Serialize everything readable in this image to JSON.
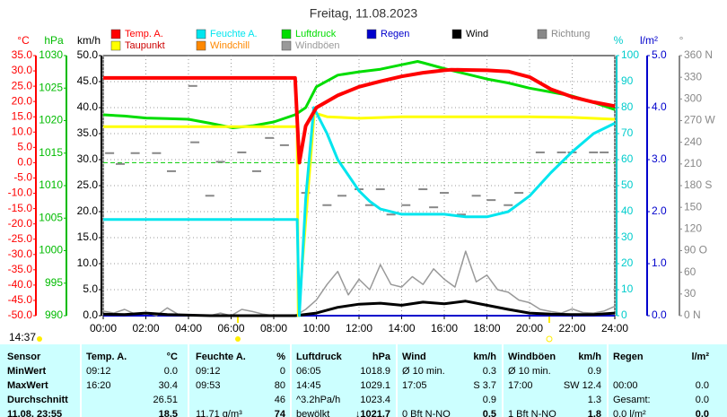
{
  "status_time": "14:37",
  "chart_data": {
    "type": "line",
    "title": "Freitag, 11.08.2023",
    "grid": true,
    "zero_line_color": "#00cc00",
    "xlim": [
      0,
      24
    ],
    "xticks": [
      {
        "value": 0,
        "label": "00:00"
      },
      {
        "value": 2,
        "label": "02:00"
      },
      {
        "value": 4,
        "label": "04:00"
      },
      {
        "value": 6,
        "label": "06:00"
      },
      {
        "value": 8,
        "label": "08:00"
      },
      {
        "value": 10,
        "label": "10:00"
      },
      {
        "value": 12,
        "label": "12:00"
      },
      {
        "value": 14,
        "label": "14:00"
      },
      {
        "value": 16,
        "label": "16:00"
      },
      {
        "value": 18,
        "label": "18:00"
      },
      {
        "value": 20,
        "label": "20:00"
      },
      {
        "value": 22,
        "label": "22:00"
      },
      {
        "value": 24,
        "label": "24:00"
      }
    ],
    "axes": [
      {
        "unit": "°C",
        "side": "left",
        "color": "#ff0000",
        "lim": [
          -50,
          35
        ],
        "ticks": [
          {
            "value": 35,
            "label": "35.0"
          },
          {
            "value": 30,
            "label": "30.0"
          },
          {
            "value": 25,
            "label": "25.0"
          },
          {
            "value": 20,
            "label": "20.0"
          },
          {
            "value": 15,
            "label": "15.0"
          },
          {
            "value": 10,
            "label": "10.0"
          },
          {
            "value": 5,
            "label": "5.0"
          },
          {
            "value": 0,
            "label": "0.0"
          },
          {
            "value": -5,
            "label": "-5.0"
          },
          {
            "value": -10,
            "label": "-10.0"
          },
          {
            "value": -15,
            "label": "-15.0"
          },
          {
            "value": -20,
            "label": "-20.0"
          },
          {
            "value": -25,
            "label": "-25.0"
          },
          {
            "value": -30,
            "label": "-30.0"
          },
          {
            "value": -35,
            "label": "-35.0"
          },
          {
            "value": -40,
            "label": "-40.0"
          },
          {
            "value": -45,
            "label": "-45.0"
          },
          {
            "value": -50,
            "label": "-50.0"
          }
        ]
      },
      {
        "unit": "hPa",
        "side": "left",
        "color": "#00bb00",
        "lim": [
          990,
          1030
        ],
        "ticks": [
          1030,
          1025,
          1020,
          1015,
          1010,
          1005,
          1000,
          995,
          990
        ]
      },
      {
        "unit": "km/h",
        "side": "left",
        "color": "#000000",
        "lim": [
          0,
          50
        ],
        "ticks": [
          {
            "value": 50,
            "label": "50.0"
          },
          {
            "value": 45,
            "label": "45.0"
          },
          {
            "value": 40,
            "label": "40.0"
          },
          {
            "value": 35,
            "label": "35.0"
          },
          {
            "value": 30,
            "label": "30.0"
          },
          {
            "value": 25,
            "label": "25.0"
          },
          {
            "value": 20,
            "label": "20.0"
          },
          {
            "value": 15,
            "label": "15.0"
          },
          {
            "value": 10,
            "label": "10.0"
          },
          {
            "value": 5,
            "label": "5.0"
          },
          {
            "value": 0,
            "label": "0.0"
          }
        ]
      },
      {
        "unit": "%",
        "side": "right",
        "color": "#00cccc",
        "lim": [
          0,
          100
        ],
        "ticks": [
          100,
          90,
          80,
          70,
          60,
          50,
          40,
          30,
          20,
          10,
          0
        ]
      },
      {
        "unit": "l/m²",
        "side": "right",
        "color": "#0000cc",
        "lim": [
          0,
          5
        ],
        "ticks": [
          {
            "value": 5,
            "label": "5.0"
          },
          {
            "value": 4,
            "label": "4.0"
          },
          {
            "value": 3,
            "label": "3.0"
          },
          {
            "value": 2,
            "label": "2.0"
          },
          {
            "value": 1,
            "label": "1.0"
          },
          {
            "value": 0,
            "label": "0.0"
          }
        ]
      },
      {
        "unit": "°",
        "side": "right",
        "color": "#888888",
        "lim": [
          0,
          360
        ],
        "ticks": [
          {
            "value": 360,
            "label": "360 N"
          },
          330,
          300,
          {
            "value": 270,
            "label": "270 W"
          },
          240,
          210,
          {
            "value": 180,
            "label": "180 S"
          },
          150,
          120,
          {
            "value": 90,
            "label": "90 O"
          },
          60,
          30,
          {
            "value": 0,
            "label": "0 N"
          }
        ]
      }
    ],
    "series": [
      {
        "name": "Temp. A.",
        "color": "#ff0000",
        "axis": 0,
        "width": 4,
        "x": [
          0,
          9.0,
          9.2,
          9.5,
          10,
          11,
          12,
          13,
          14,
          15,
          16,
          16.33,
          17,
          18,
          19,
          20,
          21,
          22,
          23,
          24
        ],
        "values": [
          27.7,
          27.7,
          0,
          12,
          18,
          22,
          24.8,
          26.6,
          28.2,
          29.4,
          30.2,
          30.4,
          30.3,
          30.2,
          29.8,
          28,
          24,
          21.5,
          19.8,
          18.5
        ]
      },
      {
        "name": "Feuchte A.",
        "color": "#00e5ee",
        "axis": 3,
        "width": 3,
        "x": [
          0,
          9.1,
          9.2,
          9.5,
          9.88,
          10.5,
          11,
          11.5,
          12,
          12.5,
          13,
          14,
          15,
          16,
          17,
          18,
          19,
          20,
          21,
          22,
          23,
          24
        ],
        "values": [
          37,
          37,
          0,
          45,
          80,
          70,
          60,
          54,
          48,
          44,
          41,
          39,
          39,
          39,
          38,
          38,
          40,
          46,
          55,
          63,
          70,
          74
        ]
      },
      {
        "name": "Luftdruck",
        "color": "#00dd00",
        "axis": 1,
        "width": 3,
        "x": [
          0,
          1,
          2,
          3,
          4,
          5,
          6.08,
          7,
          8,
          9,
          9.5,
          10,
          11,
          12,
          13,
          14,
          14.75,
          15,
          16,
          17,
          18,
          19,
          20,
          21,
          22,
          23,
          24
        ],
        "values": [
          1020.9,
          1020.7,
          1020.4,
          1020.3,
          1020.2,
          1019.6,
          1018.9,
          1019.2,
          1019.8,
          1020.9,
          1022,
          1025.2,
          1027,
          1027.5,
          1027.9,
          1028.6,
          1029.1,
          1028.9,
          1028,
          1027.2,
          1026.4,
          1025.8,
          1025,
          1024.4,
          1023.8,
          1022.8,
          1021.7
        ]
      },
      {
        "name": "Regen",
        "color": "#0000cc",
        "axis": 4,
        "width": 2,
        "x": [
          0,
          24
        ],
        "values": [
          0,
          0
        ]
      },
      {
        "name": "Wind",
        "color": "#000000",
        "axis": 2,
        "width": 3,
        "x": [
          0,
          1,
          2,
          3,
          4,
          5,
          6,
          7,
          8,
          9,
          10,
          11,
          12,
          13,
          14,
          15,
          16,
          17,
          18,
          19,
          20,
          21,
          22,
          23,
          24
        ],
        "values": [
          0.3,
          0.2,
          0.5,
          0.2,
          0.1,
          0,
          0,
          0,
          0,
          0,
          0.5,
          1.6,
          2.2,
          2.4,
          2.0,
          2.6,
          2.3,
          2.8,
          2.0,
          1.2,
          0.5,
          0.3,
          0.2,
          0.2,
          0.5
        ]
      },
      {
        "name": "Richtung",
        "color": "#888888",
        "axis": 5,
        "mark": "dash",
        "x": [
          0.3,
          0.8,
          1.5,
          2.5,
          3.2,
          4.2,
          4.3,
          5.0,
          5.5,
          6.5,
          7.2,
          7.8,
          8.5,
          9.5,
          10.5,
          11.2,
          12,
          12.5,
          13,
          13.5,
          14.2,
          15,
          15.5,
          16,
          16.8,
          17.5,
          18.2,
          19,
          19.5,
          20.5,
          21.5,
          22,
          23,
          23.5
        ],
        "values": [
          225,
          210,
          225,
          225,
          200,
          318,
          240,
          166,
          213,
          226,
          200,
          246,
          236,
          170,
          153,
          166,
          175,
          153,
          175,
          140,
          153,
          175,
          150,
          170,
          140,
          166,
          160,
          153,
          170,
          226,
          226,
          226,
          226,
          226
        ]
      },
      {
        "name": "Taupunkt",
        "color": "#ffff00",
        "axis": 0,
        "width": 3,
        "x": [
          0,
          9.1,
          9.15,
          9.9,
          10.5,
          12,
          14,
          16,
          18,
          20,
          22,
          24
        ],
        "values": [
          11.8,
          11.8,
          -50,
          16.3,
          15,
          14.5,
          15,
          15,
          15,
          15,
          14.8,
          14.2
        ]
      },
      {
        "name": "Windchill",
        "color": "#ff8800",
        "axis": 0,
        "width": 2,
        "x": [],
        "values": []
      },
      {
        "name": "Windböen",
        "color": "#999999",
        "axis": 2,
        "width": 1.5,
        "x": [
          0,
          0.5,
          1,
          1.5,
          2,
          2.5,
          3,
          3.5,
          4,
          4.5,
          5,
          5.5,
          6,
          6.5,
          7,
          7.5,
          8,
          8.5,
          9,
          9.5,
          10,
          10.5,
          11,
          11.5,
          12,
          12.5,
          13,
          13.5,
          14,
          14.5,
          15,
          15.5,
          16,
          16.5,
          17,
          17.5,
          18,
          18.5,
          19,
          19.5,
          20,
          20.5,
          21,
          21.5,
          22,
          22.5,
          23,
          23.5,
          24
        ],
        "values": [
          0.9,
          0.5,
          1.2,
          0.3,
          0.6,
          0,
          1.5,
          0.3,
          0,
          0,
          0,
          0.5,
          0,
          1.2,
          0.8,
          0.3,
          0,
          0,
          0,
          1.2,
          3,
          6,
          8.5,
          4,
          7,
          5,
          9.8,
          6,
          5.5,
          7.5,
          6,
          9,
          7,
          5.5,
          12.4,
          6.5,
          7.8,
          5,
          4.5,
          3,
          2.5,
          1.2,
          0.8,
          0.5,
          1.3,
          0.6,
          0.5,
          0.9,
          1.8
        ]
      }
    ]
  },
  "table": {
    "header": [
      "Sensor",
      "Temp. A.",
      "°C",
      "Feuchte A.",
      "%",
      "Luftdruck",
      "hPa",
      "Wind",
      "km/h",
      "Windböen",
      "km/h",
      "Regen",
      "l/m²"
    ],
    "rows": [
      [
        "MinWert",
        "09:12",
        "0.0",
        "09:12",
        "0",
        "06:05",
        "1018.9",
        "Ø 10 min.",
        "0.3",
        "Ø 10 min.",
        "0.9",
        null,
        null
      ],
      [
        "MaxWert",
        "16:20",
        "30.4",
        "09:53",
        "80",
        "14:45",
        "1029.1",
        "17:05",
        "S 3.7",
        "17:00",
        "SW 12.4",
        "00:00",
        "0.0"
      ],
      [
        "Durchschnitt",
        null,
        "26.51",
        null,
        "46",
        "^3.2hPa/h",
        "1023.4",
        null,
        "0.9",
        null,
        "1.3",
        "Gesamt:",
        "0.0"
      ],
      [
        "11.08. 23:55",
        null,
        "18.5",
        "11.71 g/m³",
        "74",
        "bewölkt",
        "↓1021.7",
        "0 Bft N-NO",
        "0.5",
        "1 Bft N-NO",
        "1.8",
        "0.0 l/m²",
        "0.0"
      ]
    ]
  }
}
